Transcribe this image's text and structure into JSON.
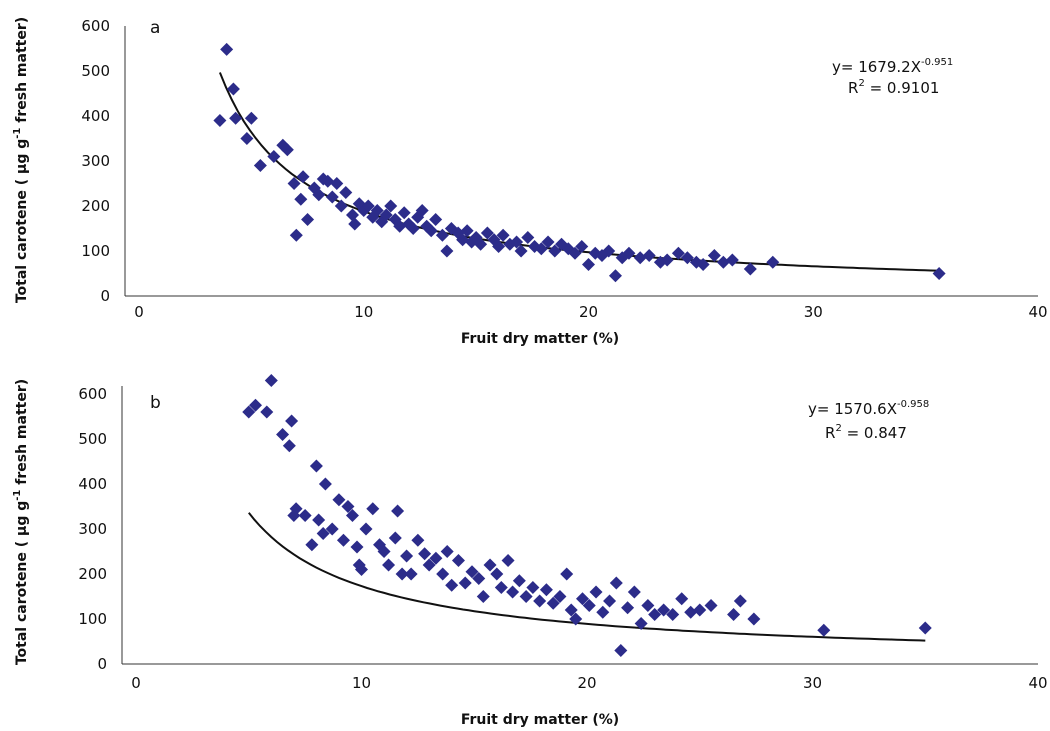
{
  "chart_data": [
    {
      "type": "scatter",
      "panel_label": "a",
      "xlabel": "Fruit dry matter (%)",
      "ylabel_main": "Total carotene ( µg g",
      "ylabel_sup": "-1",
      "ylabel_tail": " fresh matter)",
      "xlim": [
        0,
        40
      ],
      "ylim": [
        0,
        600
      ],
      "xticks": [
        0,
        10,
        20,
        30,
        40
      ],
      "yticks": [
        0,
        100,
        200,
        300,
        400,
        500,
        600
      ],
      "grid": false,
      "marker_color": "#2c2c8a",
      "trendline": {
        "type": "power",
        "coefficient": 1679.2,
        "exponent": -0.951,
        "x_range": [
          3.6,
          35.5
        ]
      },
      "equation": {
        "prefix": "y= 1679.2X",
        "exponent_text": "-0.951",
        "r2_prefix": "R",
        "r2_sup": "2",
        "r2_value": " = 0.9101"
      },
      "points": [
        [
          3.6,
          390
        ],
        [
          3.9,
          548
        ],
        [
          4.2,
          460
        ],
        [
          4.3,
          395
        ],
        [
          4.8,
          350
        ],
        [
          5.0,
          395
        ],
        [
          5.4,
          290
        ],
        [
          6.0,
          310
        ],
        [
          6.4,
          335
        ],
        [
          6.6,
          325
        ],
        [
          6.9,
          250
        ],
        [
          7.0,
          135
        ],
        [
          7.2,
          215
        ],
        [
          7.5,
          170
        ],
        [
          7.3,
          265
        ],
        [
          7.8,
          240
        ],
        [
          8.0,
          225
        ],
        [
          8.2,
          260
        ],
        [
          8.4,
          255
        ],
        [
          8.6,
          220
        ],
        [
          8.8,
          250
        ],
        [
          9.0,
          200
        ],
        [
          9.2,
          230
        ],
        [
          9.5,
          180
        ],
        [
          9.6,
          160
        ],
        [
          9.8,
          205
        ],
        [
          10.0,
          190
        ],
        [
          10.2,
          200
        ],
        [
          10.4,
          175
        ],
        [
          10.6,
          190
        ],
        [
          10.8,
          165
        ],
        [
          11.0,
          180
        ],
        [
          11.2,
          200
        ],
        [
          11.4,
          170
        ],
        [
          11.6,
          155
        ],
        [
          11.8,
          185
        ],
        [
          12.0,
          160
        ],
        [
          12.2,
          150
        ],
        [
          12.4,
          175
        ],
        [
          12.6,
          190
        ],
        [
          12.8,
          155
        ],
        [
          13.0,
          145
        ],
        [
          13.2,
          170
        ],
        [
          13.5,
          135
        ],
        [
          13.7,
          100
        ],
        [
          13.9,
          150
        ],
        [
          14.2,
          140
        ],
        [
          14.4,
          125
        ],
        [
          14.6,
          145
        ],
        [
          14.8,
          120
        ],
        [
          15.0,
          130
        ],
        [
          15.2,
          115
        ],
        [
          15.5,
          140
        ],
        [
          15.8,
          125
        ],
        [
          16.0,
          110
        ],
        [
          16.2,
          135
        ],
        [
          16.5,
          115
        ],
        [
          16.8,
          120
        ],
        [
          17.0,
          100
        ],
        [
          17.3,
          130
        ],
        [
          17.6,
          110
        ],
        [
          17.9,
          105
        ],
        [
          18.2,
          120
        ],
        [
          18.5,
          100
        ],
        [
          18.8,
          115
        ],
        [
          19.1,
          105
        ],
        [
          19.4,
          95
        ],
        [
          19.7,
          110
        ],
        [
          20.0,
          70
        ],
        [
          20.3,
          95
        ],
        [
          20.6,
          90
        ],
        [
          20.9,
          100
        ],
        [
          21.2,
          45
        ],
        [
          21.5,
          85
        ],
        [
          21.8,
          95
        ],
        [
          22.3,
          85
        ],
        [
          22.7,
          90
        ],
        [
          23.2,
          75
        ],
        [
          23.5,
          80
        ],
        [
          24.0,
          95
        ],
        [
          24.4,
          85
        ],
        [
          24.8,
          75
        ],
        [
          25.1,
          70
        ],
        [
          25.6,
          90
        ],
        [
          26.0,
          75
        ],
        [
          26.4,
          80
        ],
        [
          27.2,
          60
        ],
        [
          28.2,
          75
        ],
        [
          35.6,
          50
        ]
      ]
    },
    {
      "type": "scatter",
      "panel_label": "b",
      "xlabel": "Fruit dry matter (%)",
      "ylabel_main": "Total carotene ( µg g",
      "ylabel_sup": "-1",
      "ylabel_tail": " fresh matter)",
      "xlim": [
        0,
        40
      ],
      "ylim": [
        0,
        600
      ],
      "xticks": [
        0,
        10,
        20,
        30,
        40
      ],
      "yticks": [
        0,
        100,
        200,
        300,
        400,
        500,
        600
      ],
      "grid": false,
      "marker_color": "#2c2c8a",
      "trendline": {
        "type": "power",
        "coefficient": 1570.6,
        "exponent": -0.958,
        "x_range": [
          5.0,
          35.0
        ]
      },
      "equation": {
        "prefix": "y= 1570.6X",
        "exponent_text": "-0.958",
        "r2_prefix": "R",
        "r2_sup": "2",
        "r2_value": " = 0.847"
      },
      "points": [
        [
          5.0,
          560
        ],
        [
          5.3,
          575
        ],
        [
          5.8,
          560
        ],
        [
          6.0,
          630
        ],
        [
          6.5,
          510
        ],
        [
          6.8,
          485
        ],
        [
          6.9,
          540
        ],
        [
          7.0,
          330
        ],
        [
          7.1,
          345
        ],
        [
          7.5,
          330
        ],
        [
          7.8,
          265
        ],
        [
          8.0,
          440
        ],
        [
          8.1,
          320
        ],
        [
          8.3,
          290
        ],
        [
          8.4,
          400
        ],
        [
          8.7,
          300
        ],
        [
          9.0,
          365
        ],
        [
          9.2,
          275
        ],
        [
          9.4,
          350
        ],
        [
          9.6,
          330
        ],
        [
          9.8,
          260
        ],
        [
          9.9,
          220
        ],
        [
          10.0,
          210
        ],
        [
          10.2,
          300
        ],
        [
          10.5,
          345
        ],
        [
          10.8,
          265
        ],
        [
          11.0,
          250
        ],
        [
          11.2,
          220
        ],
        [
          11.5,
          280
        ],
        [
          11.6,
          340
        ],
        [
          11.8,
          200
        ],
        [
          12.0,
          240
        ],
        [
          12.2,
          200
        ],
        [
          12.5,
          275
        ],
        [
          12.8,
          245
        ],
        [
          13.0,
          220
        ],
        [
          13.3,
          235
        ],
        [
          13.6,
          200
        ],
        [
          13.8,
          250
        ],
        [
          14.0,
          175
        ],
        [
          14.3,
          230
        ],
        [
          14.6,
          180
        ],
        [
          14.9,
          205
        ],
        [
          15.2,
          190
        ],
        [
          15.4,
          150
        ],
        [
          15.7,
          220
        ],
        [
          16.0,
          200
        ],
        [
          16.2,
          170
        ],
        [
          16.5,
          230
        ],
        [
          16.7,
          160
        ],
        [
          17.0,
          185
        ],
        [
          17.3,
          150
        ],
        [
          17.6,
          170
        ],
        [
          17.9,
          140
        ],
        [
          18.2,
          165
        ],
        [
          18.5,
          135
        ],
        [
          18.8,
          150
        ],
        [
          19.1,
          200
        ],
        [
          19.3,
          120
        ],
        [
          19.5,
          100
        ],
        [
          19.8,
          145
        ],
        [
          20.1,
          130
        ],
        [
          20.4,
          160
        ],
        [
          20.7,
          115
        ],
        [
          21.0,
          140
        ],
        [
          21.3,
          180
        ],
        [
          21.5,
          30
        ],
        [
          21.8,
          125
        ],
        [
          22.1,
          160
        ],
        [
          22.4,
          90
        ],
        [
          22.7,
          130
        ],
        [
          23.0,
          110
        ],
        [
          23.4,
          120
        ],
        [
          23.8,
          110
        ],
        [
          24.2,
          145
        ],
        [
          24.6,
          115
        ],
        [
          25.0,
          120
        ],
        [
          25.5,
          130
        ],
        [
          26.5,
          110
        ],
        [
          26.8,
          140
        ],
        [
          27.4,
          100
        ],
        [
          30.5,
          75
        ],
        [
          35.0,
          80
        ]
      ]
    }
  ]
}
